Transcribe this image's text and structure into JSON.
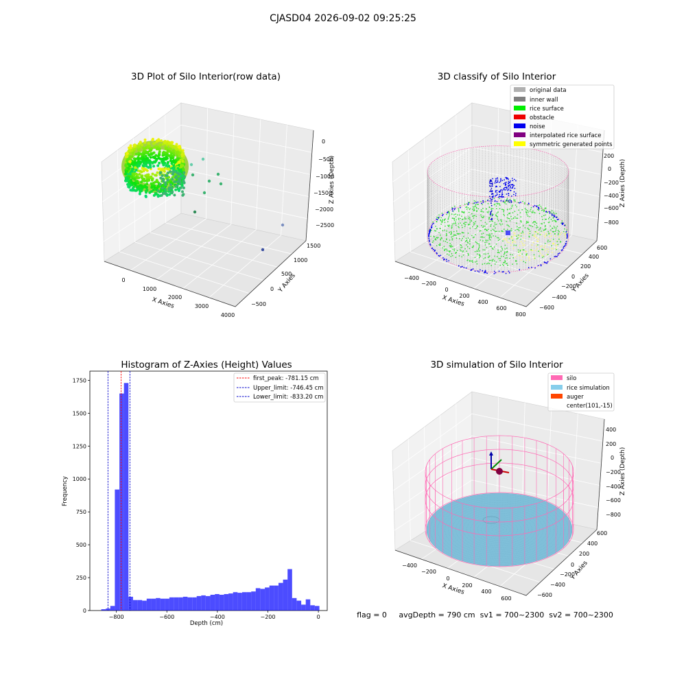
{
  "suptitle": "CJASD04 2026-09-02 09:25:25",
  "panels": {
    "raw": {
      "title": "3D Plot of Silo Interior(row data)",
      "xlabel": "X Axies",
      "ylabel": "Y Axies",
      "zlabel": "Z Axies (Depth)",
      "xticks": [
        "0",
        "1000",
        "2000",
        "3000",
        "4000"
      ],
      "yticks": [
        "−500",
        "0",
        "500",
        "1000",
        "1500"
      ],
      "zticks": [
        "0",
        "−500",
        "−1000",
        "−1500",
        "−2000",
        "−2500"
      ]
    },
    "classify": {
      "title": "3D classify of Silo Interior",
      "xlabel": "X Axies",
      "ylabel": "Y Axies",
      "zlabel": "Z Axies (Depth)",
      "xticks": [
        "−400",
        "−200",
        "0",
        "200",
        "400",
        "600",
        "800"
      ],
      "yticks": [
        "−600",
        "−400",
        "−200",
        "0",
        "200",
        "400",
        "600"
      ],
      "zticks": [
        "200",
        "0",
        "−200",
        "−400",
        "−600",
        "−800"
      ],
      "legend": [
        {
          "label": "original data",
          "color": "#b0b0b0"
        },
        {
          "label": "inner wall",
          "color": "#808080"
        },
        {
          "label": "rice surface",
          "color": "#00ee00"
        },
        {
          "label": "obstacle",
          "color": "#ee0000"
        },
        {
          "label": "noise",
          "color": "#0000ee"
        },
        {
          "label": "interpolated rice surface",
          "color": "#800080"
        },
        {
          "label": "symmetric generated points",
          "color": "#ffff00"
        }
      ]
    },
    "simulation": {
      "title": "3D simulation of Silo Interior",
      "xlabel": "X Axies",
      "ylabel": "Y Axies",
      "zlabel": "Z Axies (Depth)",
      "xticks": [
        "−400",
        "−200",
        "0",
        "200",
        "400",
        "600"
      ],
      "yticks": [
        "−600",
        "−400",
        "−200",
        "0",
        "200",
        "400",
        "600"
      ],
      "zticks": [
        "400",
        "200",
        "0",
        "−200",
        "−400",
        "−600",
        "−800"
      ],
      "legend": [
        {
          "label": "silo",
          "color": "#ff69b4"
        },
        {
          "label": "rice simulation",
          "color": "#87ceeb"
        },
        {
          "label": "auger",
          "color": "#ff4500"
        },
        {
          "label": "center(101,-15)",
          "color": ""
        }
      ]
    }
  },
  "status_text": "flag = 0     avgDepth = 790 cm  sv1 = 700~2300  sv2 = 700~2300",
  "chart_data": [
    {
      "type": "bar",
      "title": "Histogram of Z-Axies (Height) Values",
      "xlabel": "Depth (cm)",
      "ylabel": "Frequency",
      "xlim": [
        -905,
        35
      ],
      "ylim": [
        0,
        1820
      ],
      "xticks": [
        "−800",
        "−600",
        "−400",
        "−200",
        "0"
      ],
      "xtick_values": [
        -800,
        -600,
        -400,
        -200,
        0
      ],
      "yticks": [
        "0",
        "250",
        "500",
        "750",
        "1000",
        "1250",
        "1500",
        "1750"
      ],
      "ytick_values": [
        0,
        250,
        500,
        750,
        1000,
        1250,
        1500,
        1750
      ],
      "bar_color": "#0000ff",
      "bin_width": 18,
      "bin_starts": [
        -860,
        -842,
        -824,
        -806,
        -788,
        -770,
        -752,
        -734,
        -716,
        -698,
        -680,
        -662,
        -644,
        -626,
        -608,
        -590,
        -572,
        -554,
        -536,
        -518,
        -500,
        -482,
        -464,
        -446,
        -428,
        -410,
        -392,
        -374,
        -356,
        -338,
        -320,
        -302,
        -284,
        -266,
        -248,
        -230,
        -212,
        -194,
        -176,
        -158,
        -140,
        -122,
        -104,
        -86,
        -68,
        -50,
        -32,
        -14
      ],
      "values": [
        10,
        15,
        35,
        920,
        1650,
        1730,
        105,
        80,
        80,
        75,
        90,
        90,
        95,
        90,
        90,
        100,
        100,
        100,
        105,
        100,
        100,
        110,
        115,
        110,
        120,
        125,
        120,
        125,
        130,
        140,
        135,
        140,
        140,
        145,
        170,
        165,
        175,
        190,
        190,
        210,
        235,
        315,
        95,
        75,
        45,
        85,
        40,
        35
      ],
      "vlines": [
        {
          "label": "first_peak: -781.15 cm",
          "x": -781.15,
          "color": "#ff0000"
        },
        {
          "label": "Upper_limit: -746.45 cm",
          "x": -746.45,
          "color": "#0000cc"
        },
        {
          "label": "Lower_limit: -833.20 cm",
          "x": -833.2,
          "color": "#0000cc"
        }
      ],
      "legend_position": "top-right"
    }
  ]
}
